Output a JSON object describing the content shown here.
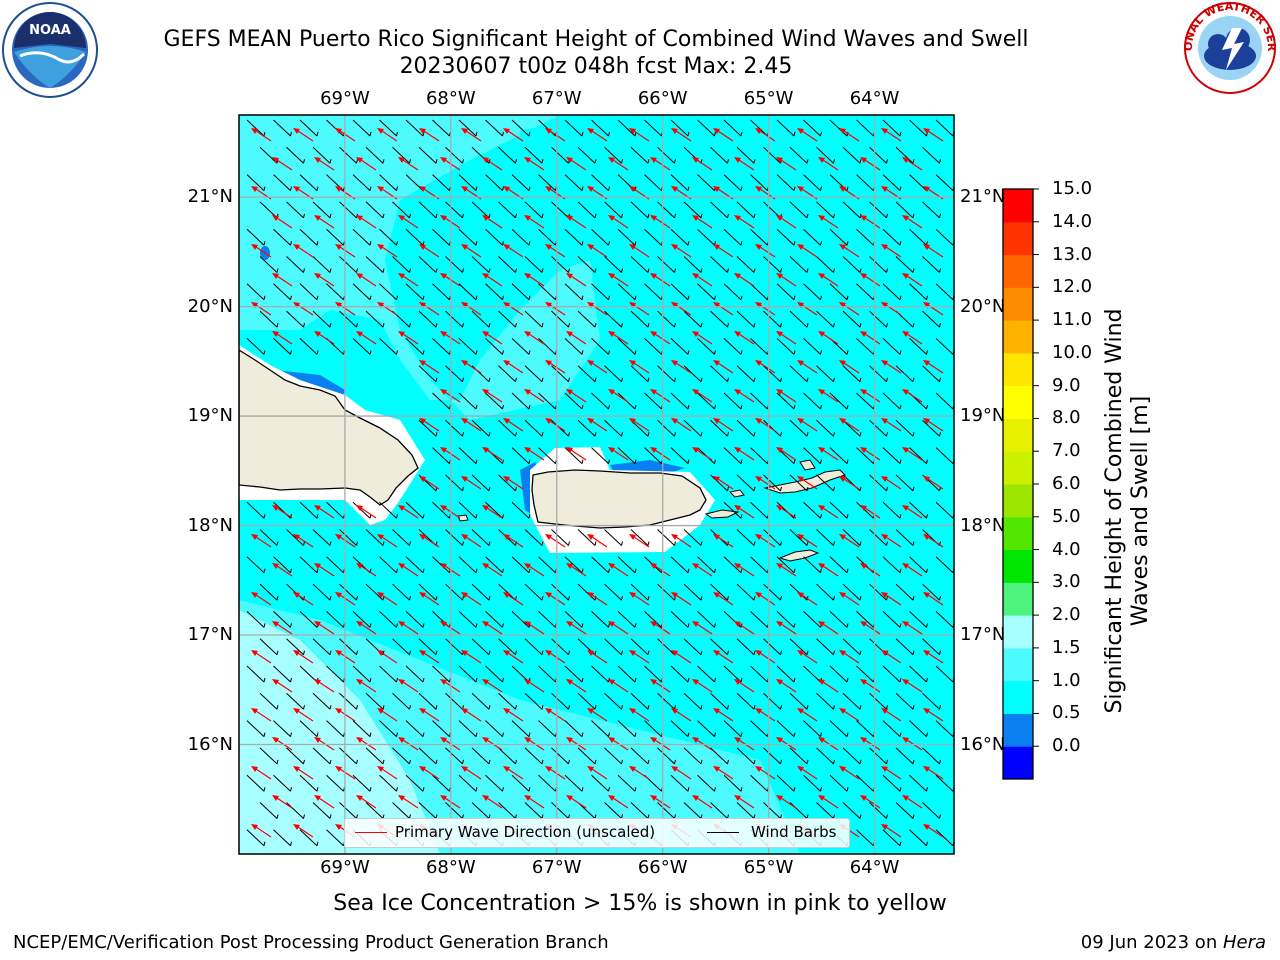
{
  "header": {
    "title_line1": "GEFS MEAN Puerto Rico Significant Height of Combined Wind Waves and Swell",
    "title_line2": "20230607 t00z 048h fcst   Max: 2.45"
  },
  "logos": {
    "left": "NOAA",
    "right": "NATIONAL WEATHER SERVICE"
  },
  "map": {
    "lon_labels": [
      "69°W",
      "68°W",
      "67°W",
      "66°W",
      "65°W",
      "64°W"
    ],
    "lat_labels": [
      "21°N",
      "20°N",
      "19°N",
      "18°N",
      "17°N",
      "16°N"
    ],
    "lon_values": [
      -69,
      -68,
      -67,
      -66,
      -65,
      -64
    ],
    "lat_values": [
      21,
      20,
      19,
      18,
      17,
      16
    ],
    "extent": {
      "lon": [
        -70.0,
        -63.25
      ],
      "lat": [
        15.0,
        21.75
      ]
    },
    "colors": {
      "ocean_low": "#00ffff",
      "ocean_mid": "#4dfbff",
      "ocean_high": "#a8ffff",
      "land": "#efecdb",
      "band_blue": "#0a80f0"
    }
  },
  "legend": {
    "wave_label": "Primary Wave Direction (unscaled)",
    "wave_color": "#ff0000",
    "barb_label": "Wind Barbs",
    "barb_color": "#000000"
  },
  "colorbar": {
    "label": "Significant Height of Combined Wind Waves and Swell [m]",
    "ticks": [
      "15.0",
      "14.0",
      "13.0",
      "12.0",
      "11.0",
      "10.0",
      "9.0",
      "8.0",
      "7.0",
      "6.0",
      "5.0",
      "4.0",
      "3.0",
      "2.0",
      "1.5",
      "1.0",
      "0.5",
      "0.0"
    ],
    "colors": [
      "#0000ff",
      "#0a80f0",
      "#00ffff",
      "#4dfbff",
      "#a8ffff",
      "#4cf47d",
      "#00e600",
      "#52e600",
      "#9ce600",
      "#cbf000",
      "#e6f000",
      "#ffff00",
      "#ffe600",
      "#ffb300",
      "#ff8c00",
      "#ff6600",
      "#ff3300",
      "#ff0000"
    ]
  },
  "subtitle": "Sea Ice Concentration > 15% is shown in pink to yellow",
  "footer": {
    "left": "NCEP/EMC/Verification Post Processing Product Generation Branch",
    "date": "09 Jun 2023 on ",
    "host": "Hera"
  }
}
